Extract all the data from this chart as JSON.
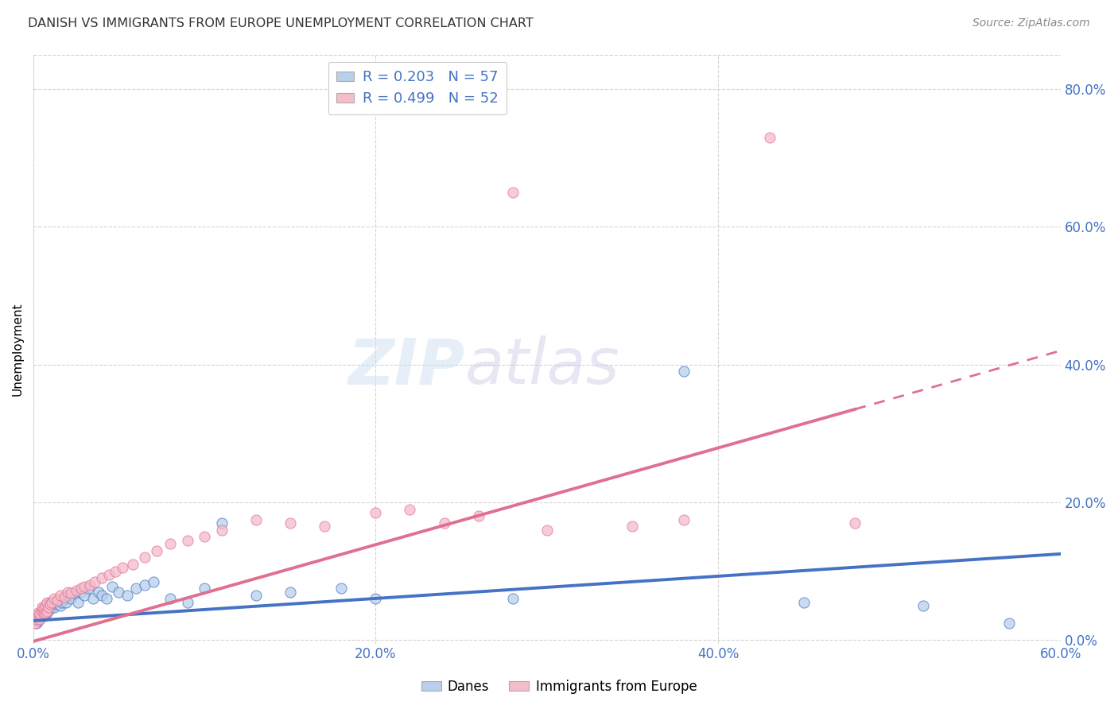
{
  "title": "DANISH VS IMMIGRANTS FROM EUROPE UNEMPLOYMENT CORRELATION CHART",
  "source": "Source: ZipAtlas.com",
  "ylabel": "Unemployment",
  "xlabel": "",
  "xlim": [
    0.0,
    0.6
  ],
  "ylim": [
    -0.005,
    0.85
  ],
  "danes_color": "#b8d0ea",
  "immigrants_color": "#f5bccb",
  "danes_line_color": "#4472c4",
  "immigrants_line_color": "#e07090",
  "danes_R": 0.203,
  "danes_N": 57,
  "immigrants_R": 0.499,
  "immigrants_N": 52,
  "danes_x": [
    0.001,
    0.002,
    0.003,
    0.003,
    0.004,
    0.004,
    0.005,
    0.005,
    0.006,
    0.006,
    0.007,
    0.007,
    0.008,
    0.008,
    0.009,
    0.009,
    0.01,
    0.01,
    0.011,
    0.012,
    0.013,
    0.014,
    0.015,
    0.016,
    0.017,
    0.018,
    0.019,
    0.02,
    0.022,
    0.024,
    0.026,
    0.028,
    0.03,
    0.032,
    0.035,
    0.038,
    0.04,
    0.043,
    0.046,
    0.05,
    0.055,
    0.06,
    0.065,
    0.07,
    0.08,
    0.09,
    0.1,
    0.11,
    0.13,
    0.15,
    0.18,
    0.2,
    0.28,
    0.38,
    0.45,
    0.52,
    0.57
  ],
  "danes_y": [
    0.03,
    0.025,
    0.035,
    0.028,
    0.032,
    0.038,
    0.04,
    0.045,
    0.035,
    0.042,
    0.038,
    0.048,
    0.04,
    0.052,
    0.044,
    0.05,
    0.045,
    0.055,
    0.05,
    0.048,
    0.055,
    0.052,
    0.058,
    0.05,
    0.055,
    0.06,
    0.055,
    0.065,
    0.06,
    0.068,
    0.055,
    0.07,
    0.065,
    0.075,
    0.06,
    0.07,
    0.065,
    0.06,
    0.078,
    0.07,
    0.065,
    0.075,
    0.08,
    0.085,
    0.06,
    0.055,
    0.075,
    0.17,
    0.065,
    0.07,
    0.075,
    0.06,
    0.06,
    0.39,
    0.055,
    0.05,
    0.025
  ],
  "immigrants_x": [
    0.001,
    0.002,
    0.003,
    0.003,
    0.004,
    0.004,
    0.005,
    0.005,
    0.006,
    0.006,
    0.007,
    0.007,
    0.008,
    0.008,
    0.009,
    0.01,
    0.011,
    0.012,
    0.014,
    0.016,
    0.018,
    0.02,
    0.022,
    0.025,
    0.028,
    0.03,
    0.033,
    0.036,
    0.04,
    0.044,
    0.048,
    0.052,
    0.058,
    0.065,
    0.072,
    0.08,
    0.09,
    0.1,
    0.11,
    0.13,
    0.15,
    0.17,
    0.2,
    0.22,
    0.24,
    0.26,
    0.28,
    0.3,
    0.35,
    0.38,
    0.43,
    0.48
  ],
  "immigrants_y": [
    0.025,
    0.03,
    0.035,
    0.04,
    0.03,
    0.038,
    0.042,
    0.048,
    0.038,
    0.045,
    0.04,
    0.05,
    0.042,
    0.055,
    0.048,
    0.052,
    0.055,
    0.06,
    0.058,
    0.065,
    0.062,
    0.07,
    0.068,
    0.072,
    0.075,
    0.078,
    0.08,
    0.085,
    0.09,
    0.095,
    0.1,
    0.105,
    0.11,
    0.12,
    0.13,
    0.14,
    0.145,
    0.15,
    0.16,
    0.175,
    0.17,
    0.165,
    0.185,
    0.19,
    0.17,
    0.18,
    0.65,
    0.16,
    0.165,
    0.175,
    0.73,
    0.17
  ],
  "danes_trend_x0": 0.0,
  "danes_trend_x1": 0.6,
  "danes_trend_y0": 0.028,
  "danes_trend_y1": 0.125,
  "immigrants_trend_x0": 0.0,
  "immigrants_trend_x1": 0.48,
  "immigrants_trend_solid_end": 0.48,
  "immigrants_trend_dashed_end": 0.6,
  "immigrants_trend_y0": -0.002,
  "immigrants_trend_y1_solid": 0.335,
  "immigrants_trend_y1_dashed": 0.42
}
